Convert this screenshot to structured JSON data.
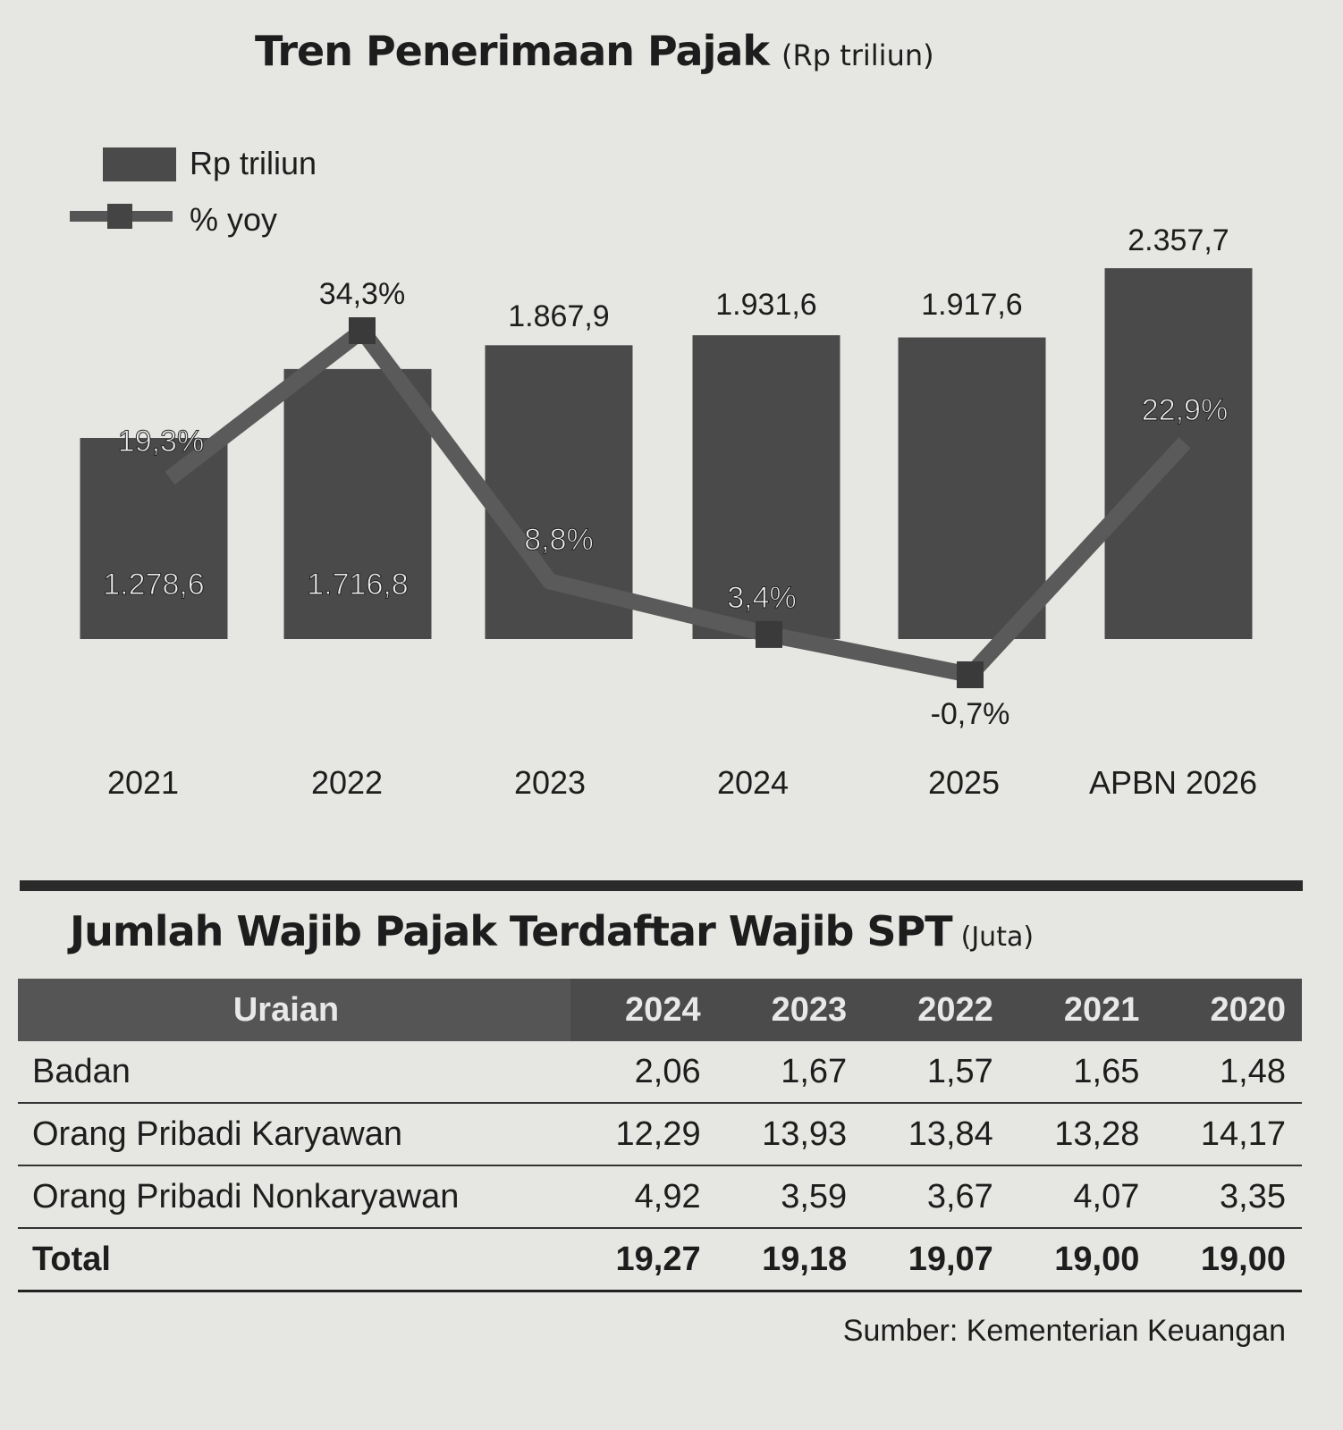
{
  "chart_data": [
    {
      "type": "bar+line",
      "title": "Tren Penerimaan Pajak",
      "unit": "(Rp triliun)",
      "categories": [
        "2021",
        "2022",
        "2023",
        "2024",
        "2025",
        "APBN 2026"
      ],
      "legend": {
        "placement": "top-left",
        "entries": [
          "Rp triliun",
          "% yoy"
        ]
      },
      "series": [
        {
          "name": "Rp triliun",
          "type": "bar",
          "values": [
            1278.6,
            1716.8,
            1867.9,
            1931.6,
            1917.6,
            2357.7
          ],
          "labels": [
            "1.278,6",
            "1.716,8",
            "1.867,9",
            "1.931,6",
            "1.917,6",
            "2.357,7"
          ]
        },
        {
          "name": "% yoy",
          "type": "line",
          "values": [
            19.3,
            34.3,
            8.8,
            3.4,
            -0.7,
            22.9
          ],
          "labels": [
            "19,3%",
            "34,3%",
            "8,8%",
            "3,4%",
            "-0,7%",
            "22,9%"
          ]
        }
      ],
      "colors": {
        "bar": "#4a4a4a",
        "line": "#5a5a5a"
      }
    },
    {
      "type": "table",
      "title": "Jumlah Wajib Pajak Terdaftar Wajib SPT",
      "unit": "(Juta)",
      "columns": [
        "Uraian",
        "2024",
        "2023",
        "2022",
        "2021",
        "2020"
      ],
      "rows": [
        {
          "label": "Badan",
          "values": [
            "2,06",
            "1,67",
            "1,57",
            "1,65",
            "1,48"
          ]
        },
        {
          "label": "Orang Pribadi Karyawan",
          "values": [
            "12,29",
            "13,93",
            "13,84",
            "13,28",
            "14,17"
          ]
        },
        {
          "label": "Orang Pribadi Nonkaryawan",
          "values": [
            "4,92",
            "3,59",
            "3,67",
            "4,07",
            "3,35"
          ]
        },
        {
          "label": "Total",
          "values": [
            "19,27",
            "19,18",
            "19,07",
            "19,00",
            "19,00"
          ]
        }
      ]
    }
  ],
  "source": "Sumber: Kementerian Keuangan"
}
